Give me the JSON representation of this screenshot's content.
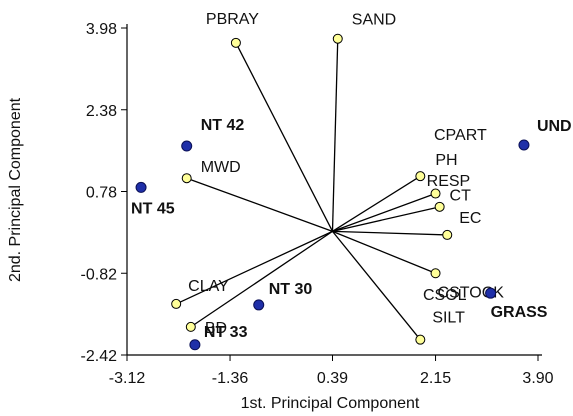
{
  "chart_data": {
    "type": "scatter",
    "xlabel": "1st. Principal Component",
    "ylabel": "2nd. Principal Component",
    "xlim": [
      -3.12,
      3.9
    ],
    "ylim": [
      -2.42,
      3.98
    ],
    "x_ticks": [
      "-3.12",
      "-1.36",
      "0.39",
      "2.15",
      "3.90"
    ],
    "y_ticks": [
      "3.98",
      "2.38",
      "0.78",
      "-0.82",
      "-2.42"
    ],
    "grid": false,
    "origin": [
      0.39,
      0.0
    ],
    "series": [
      {
        "name": "",
        "kind": "variables",
        "marker_color": "#ffff99",
        "line_color": "#000000",
        "points": [
          {
            "label": "PBRAY",
            "x": -1.26,
            "y": 3.69
          },
          {
            "label": "SAND",
            "x": 0.48,
            "y": 3.77
          },
          {
            "label": "MWD",
            "x": -2.1,
            "y": 1.04
          },
          {
            "label": "PH",
            "x": 1.89,
            "y": 1.08
          },
          {
            "label": "CT",
            "x": 2.15,
            "y": 0.74
          },
          {
            "label": "RESP",
            "x": 2.22,
            "y": 0.48
          },
          {
            "label": "EC",
            "x": 2.35,
            "y": -0.07
          },
          {
            "label": "CSTOCK",
            "x": 2.15,
            "y": -0.82
          },
          {
            "label": "SILT",
            "x": 1.89,
            "y": -2.12
          },
          {
            "label": "CLAY",
            "x": -2.28,
            "y": -1.42
          },
          {
            "label": "BD",
            "x": -2.03,
            "y": -1.87
          }
        ]
      },
      {
        "name": "",
        "kind": "treatments",
        "marker_color": "#1f2fa8",
        "points": [
          {
            "label": "NT 42",
            "x": -2.1,
            "y": 1.67
          },
          {
            "label": "NT 45",
            "x": -2.88,
            "y": 0.86
          },
          {
            "label": "UND",
            "x": 3.66,
            "y": 1.69
          },
          {
            "label": "NT 30",
            "x": -0.87,
            "y": -1.44
          },
          {
            "label": "NT 33",
            "x": -1.96,
            "y": -2.22
          },
          {
            "label": "GRASS",
            "x": 3.09,
            "y": -1.21
          }
        ]
      }
    ],
    "extra_labels": [
      {
        "text": "CPART"
      },
      {
        "text": "CSOL"
      }
    ]
  }
}
